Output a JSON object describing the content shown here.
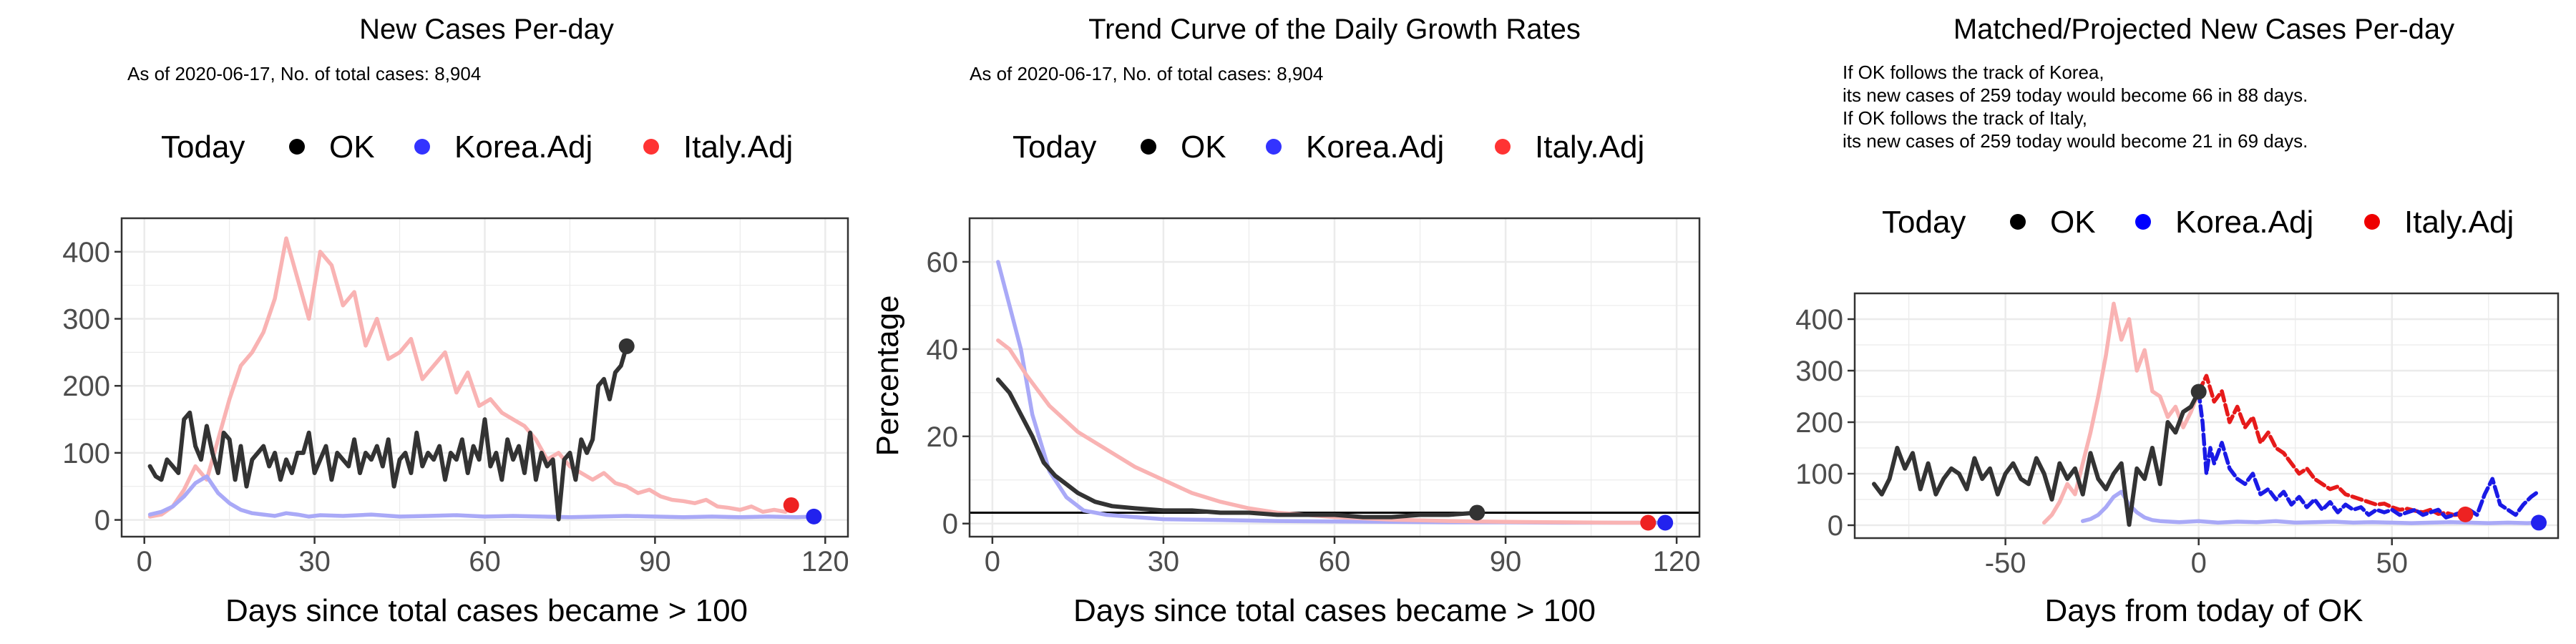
{
  "colors": {
    "ok": "#333333",
    "korea_light": "#a9a9f7",
    "italy_light": "#f9b3b3",
    "korea_full": "#1a1ae6",
    "italy_full": "#e61a1a",
    "grid": "#ebebeb",
    "frame": "#333333"
  },
  "chart_data": [
    {
      "type": "line",
      "title": "New Cases Per-day",
      "subtitle": [
        "As of 2020-06-17, No. of total cases: 8,904"
      ],
      "xlabel": "Days since total cases became > 100",
      "ylabel": "",
      "xlim": [
        -4,
        124
      ],
      "ylim": [
        -25,
        450
      ],
      "xticks": [
        0,
        30,
        60,
        90,
        120
      ],
      "yticks": [
        0,
        100,
        200,
        300,
        400
      ],
      "legend": {
        "position": "top",
        "title": "Today",
        "entries": [
          "OK",
          "Korea.Adj",
          "Italy.Adj"
        ]
      },
      "grid": true,
      "series": [
        {
          "name": "Italy.Adj",
          "x": [
            1,
            3,
            5,
            7,
            9,
            11,
            13,
            15,
            17,
            19,
            21,
            23,
            25,
            27,
            29,
            31,
            33,
            35,
            37,
            39,
            41,
            43,
            45,
            47,
            49,
            51,
            53,
            55,
            57,
            59,
            61,
            63,
            65,
            67,
            69,
            71,
            73,
            75,
            77,
            79,
            81,
            83,
            85,
            87,
            89,
            91,
            93,
            95,
            97,
            99,
            101,
            103,
            105,
            107,
            109,
            111,
            113
          ],
          "y": [
            5,
            8,
            20,
            45,
            80,
            60,
            120,
            180,
            230,
            250,
            280,
            330,
            420,
            360,
            300,
            400,
            380,
            320,
            340,
            260,
            300,
            240,
            250,
            270,
            210,
            230,
            250,
            190,
            220,
            170,
            180,
            160,
            150,
            140,
            120,
            90,
            100,
            80,
            70,
            60,
            70,
            55,
            50,
            40,
            45,
            35,
            30,
            28,
            25,
            30,
            20,
            18,
            15,
            20,
            12,
            15,
            12
          ]
        },
        {
          "name": "Korea.Adj",
          "x": [
            1,
            3,
            5,
            7,
            9,
            11,
            13,
            15,
            17,
            19,
            21,
            23,
            25,
            27,
            29,
            31,
            35,
            40,
            45,
            50,
            55,
            60,
            65,
            70,
            75,
            80,
            85,
            90,
            95,
            100,
            105,
            110,
            115,
            118
          ],
          "y": [
            8,
            12,
            20,
            35,
            55,
            65,
            40,
            25,
            15,
            10,
            8,
            6,
            10,
            8,
            5,
            7,
            6,
            8,
            5,
            6,
            7,
            5,
            6,
            5,
            4,
            5,
            6,
            5,
            4,
            5,
            4,
            5,
            4,
            5
          ]
        },
        {
          "name": "OK",
          "x": [
            1,
            2,
            3,
            4,
            5,
            6,
            7,
            8,
            9,
            10,
            11,
            12,
            13,
            14,
            15,
            16,
            17,
            18,
            19,
            20,
            21,
            22,
            23,
            24,
            25,
            26,
            27,
            28,
            29,
            30,
            31,
            32,
            33,
            34,
            35,
            36,
            37,
            38,
            39,
            40,
            41,
            42,
            43,
            44,
            45,
            46,
            47,
            48,
            49,
            50,
            51,
            52,
            53,
            54,
            55,
            56,
            57,
            58,
            59,
            60,
            61,
            62,
            63,
            64,
            65,
            66,
            67,
            68,
            69,
            70,
            71,
            72,
            73,
            74,
            75,
            76,
            77,
            78,
            79,
            80,
            81,
            82,
            83,
            84,
            85
          ],
          "y": [
            80,
            65,
            60,
            90,
            80,
            70,
            150,
            160,
            110,
            90,
            140,
            100,
            70,
            130,
            120,
            60,
            110,
            50,
            90,
            100,
            110,
            80,
            100,
            60,
            90,
            70,
            100,
            100,
            130,
            70,
            90,
            110,
            60,
            100,
            90,
            80,
            120,
            70,
            100,
            90,
            110,
            80,
            120,
            50,
            90,
            100,
            70,
            130,
            80,
            100,
            90,
            110,
            60,
            100,
            90,
            120,
            70,
            110,
            90,
            150,
            80,
            100,
            60,
            120,
            90,
            110,
            70,
            130,
            60,
            100,
            80,
            90,
            1,
            90,
            100,
            60,
            120,
            100,
            120,
            200,
            210,
            180,
            220,
            230,
            259
          ]
        }
      ],
      "today_points": [
        {
          "name": "OK",
          "x": 85,
          "y": 259
        },
        {
          "name": "Korea.Adj",
          "x": 118,
          "y": 5
        },
        {
          "name": "Italy.Adj",
          "x": 114,
          "y": 22
        }
      ]
    },
    {
      "type": "line",
      "title": "Trend Curve of the Daily Growth Rates",
      "subtitle": [
        "As of 2020-06-17, No. of total cases: 8,904"
      ],
      "xlabel": "Days since total cases became > 100",
      "ylabel": "Percentage",
      "xlim": [
        -4,
        124
      ],
      "ylim": [
        -3,
        70
      ],
      "xticks": [
        0,
        30,
        60,
        90,
        120
      ],
      "yticks": [
        0,
        20,
        40,
        60
      ],
      "hline": 2.5,
      "legend": {
        "position": "top",
        "title": "Today",
        "entries": [
          "OK",
          "Korea.Adj",
          "Italy.Adj"
        ]
      },
      "grid": true,
      "series": [
        {
          "name": "Korea.Adj",
          "x": [
            1,
            3,
            5,
            7,
            10,
            13,
            16,
            20,
            25,
            30,
            40,
            50,
            60,
            70,
            80,
            90,
            100,
            110,
            118
          ],
          "y": [
            60,
            50,
            40,
            25,
            12,
            6,
            3,
            2,
            1.5,
            1,
            0.8,
            0.6,
            0.5,
            0.4,
            0.3,
            0.3,
            0.2,
            0.2,
            0.2
          ]
        },
        {
          "name": "Italy.Adj",
          "x": [
            1,
            3,
            6,
            10,
            15,
            20,
            25,
            30,
            35,
            40,
            45,
            50,
            55,
            60,
            65,
            70,
            80,
            90,
            100,
            110,
            115
          ],
          "y": [
            42,
            40,
            34,
            27,
            21,
            17,
            13,
            10,
            7,
            5,
            3.5,
            2.5,
            2,
            1.5,
            1.2,
            0.9,
            0.6,
            0.4,
            0.3,
            0.2,
            0.2
          ]
        },
        {
          "name": "OK",
          "x": [
            1,
            3,
            5,
            7,
            9,
            11,
            13,
            15,
            18,
            21,
            25,
            30,
            35,
            40,
            45,
            50,
            55,
            60,
            65,
            70,
            75,
            80,
            85
          ],
          "y": [
            33,
            30,
            25,
            20,
            14,
            11,
            9,
            7,
            5,
            4,
            3.5,
            3,
            3,
            2.5,
            2.5,
            2,
            2,
            2,
            1.5,
            1.5,
            2,
            2,
            2.5
          ]
        }
      ],
      "today_points": [
        {
          "name": "OK",
          "x": 85,
          "y": 2.5
        },
        {
          "name": "Korea.Adj",
          "x": 118,
          "y": 0.2
        },
        {
          "name": "Italy.Adj",
          "x": 115,
          "y": 0.2
        }
      ]
    },
    {
      "type": "line",
      "title": "Matched/Projected New Cases Per-day",
      "subtitle": [
        "If OK follows the track of Korea,",
        "its new cases of 259 today would become 66 in 88 days.",
        "If OK follows the track of Italy,",
        "its new cases of 259 today would become 21 in 69 days."
      ],
      "xlabel": "Days from today of OK",
      "ylabel": "",
      "xlim": [
        -89,
        93
      ],
      "ylim": [
        -25,
        450
      ],
      "xticks": [
        -50,
        0,
        50
      ],
      "yticks": [
        0,
        100,
        200,
        300,
        400
      ],
      "legend": {
        "position": "top",
        "title": "Today",
        "entries": [
          "OK",
          "Korea.Adj",
          "Italy.Adj"
        ]
      },
      "grid": true,
      "series": [
        {
          "name": "Italy.Adj (matched)",
          "x": [
            -40,
            -38,
            -36,
            -34,
            -32,
            -30,
            -28,
            -26,
            -24,
            -22,
            -20,
            -18,
            -16,
            -14,
            -12,
            -10,
            -8,
            -6,
            -4,
            -2,
            0
          ],
          "y": [
            5,
            20,
            45,
            80,
            60,
            120,
            180,
            250,
            330,
            430,
            360,
            400,
            300,
            340,
            260,
            250,
            210,
            230,
            190,
            220,
            259
          ]
        },
        {
          "name": "Korea.Adj (matched)",
          "x": [
            -30,
            -28,
            -26,
            -24,
            -22,
            -20,
            -18,
            -16,
            -14,
            -12,
            -10,
            -5,
            0,
            5,
            10,
            15,
            20,
            25,
            30,
            35,
            40,
            45,
            50,
            55,
            60,
            65,
            70,
            75,
            80,
            85,
            88
          ],
          "y": [
            8,
            12,
            20,
            35,
            55,
            65,
            40,
            25,
            15,
            10,
            8,
            6,
            8,
            5,
            7,
            6,
            8,
            5,
            6,
            7,
            5,
            6,
            5,
            4,
            5,
            6,
            5,
            4,
            5,
            4,
            5
          ]
        },
        {
          "name": "OK",
          "x": [
            -84,
            -82,
            -80,
            -78,
            -76,
            -74,
            -72,
            -70,
            -68,
            -66,
            -64,
            -62,
            -60,
            -58,
            -56,
            -54,
            -52,
            -50,
            -48,
            -46,
            -44,
            -42,
            -40,
            -38,
            -36,
            -34,
            -32,
            -30,
            -28,
            -26,
            -24,
            -22,
            -20,
            -18,
            -16,
            -14,
            -12,
            -10,
            -8,
            -6,
            -4,
            -2,
            0
          ],
          "y": [
            80,
            60,
            90,
            150,
            110,
            140,
            70,
            120,
            60,
            90,
            110,
            100,
            70,
            130,
            90,
            110,
            60,
            100,
            120,
            90,
            80,
            130,
            100,
            50,
            120,
            90,
            110,
            60,
            140,
            90,
            70,
            100,
            120,
            1,
            110,
            90,
            150,
            80,
            200,
            180,
            220,
            230,
            259
          ]
        },
        {
          "name": "Italy.Adj",
          "x": [
            0,
            2,
            4,
            6,
            8,
            10,
            12,
            14,
            16,
            18,
            20,
            22,
            24,
            26,
            28,
            30,
            32,
            34,
            36,
            38,
            40,
            42,
            44,
            46,
            48,
            50,
            52,
            54,
            56,
            58,
            60,
            62,
            64,
            66,
            69
          ],
          "y": [
            259,
            290,
            240,
            260,
            200,
            230,
            190,
            210,
            160,
            180,
            150,
            140,
            120,
            100,
            110,
            90,
            80,
            70,
            75,
            60,
            55,
            50,
            45,
            40,
            42,
            35,
            30,
            32,
            28,
            25,
            30,
            22,
            24,
            20,
            21
          ]
        },
        {
          "name": "Korea.Adj",
          "x": [
            0,
            1,
            2,
            3,
            4,
            6,
            8,
            10,
            12,
            14,
            16,
            18,
            20,
            22,
            24,
            26,
            28,
            30,
            32,
            34,
            36,
            38,
            40,
            42,
            44,
            46,
            48,
            50,
            52,
            54,
            56,
            58,
            60,
            62,
            64,
            66,
            68,
            70,
            72,
            74,
            76,
            78,
            80,
            82,
            84,
            86,
            88
          ],
          "y": [
            259,
            200,
            100,
            150,
            120,
            160,
            110,
            90,
            80,
            100,
            60,
            70,
            50,
            65,
            40,
            55,
            35,
            50,
            30,
            45,
            25,
            40,
            30,
            35,
            20,
            30,
            25,
            30,
            20,
            25,
            30,
            20,
            25,
            30,
            15,
            20,
            25,
            30,
            20,
            60,
            90,
            40,
            30,
            20,
            40,
            55,
            66
          ]
        }
      ],
      "today_points": [
        {
          "name": "OK",
          "x": 0,
          "y": 259
        },
        {
          "name": "Korea.Adj",
          "x": 88,
          "y": 5
        },
        {
          "name": "Italy.Adj",
          "x": 69,
          "y": 21
        }
      ]
    }
  ]
}
